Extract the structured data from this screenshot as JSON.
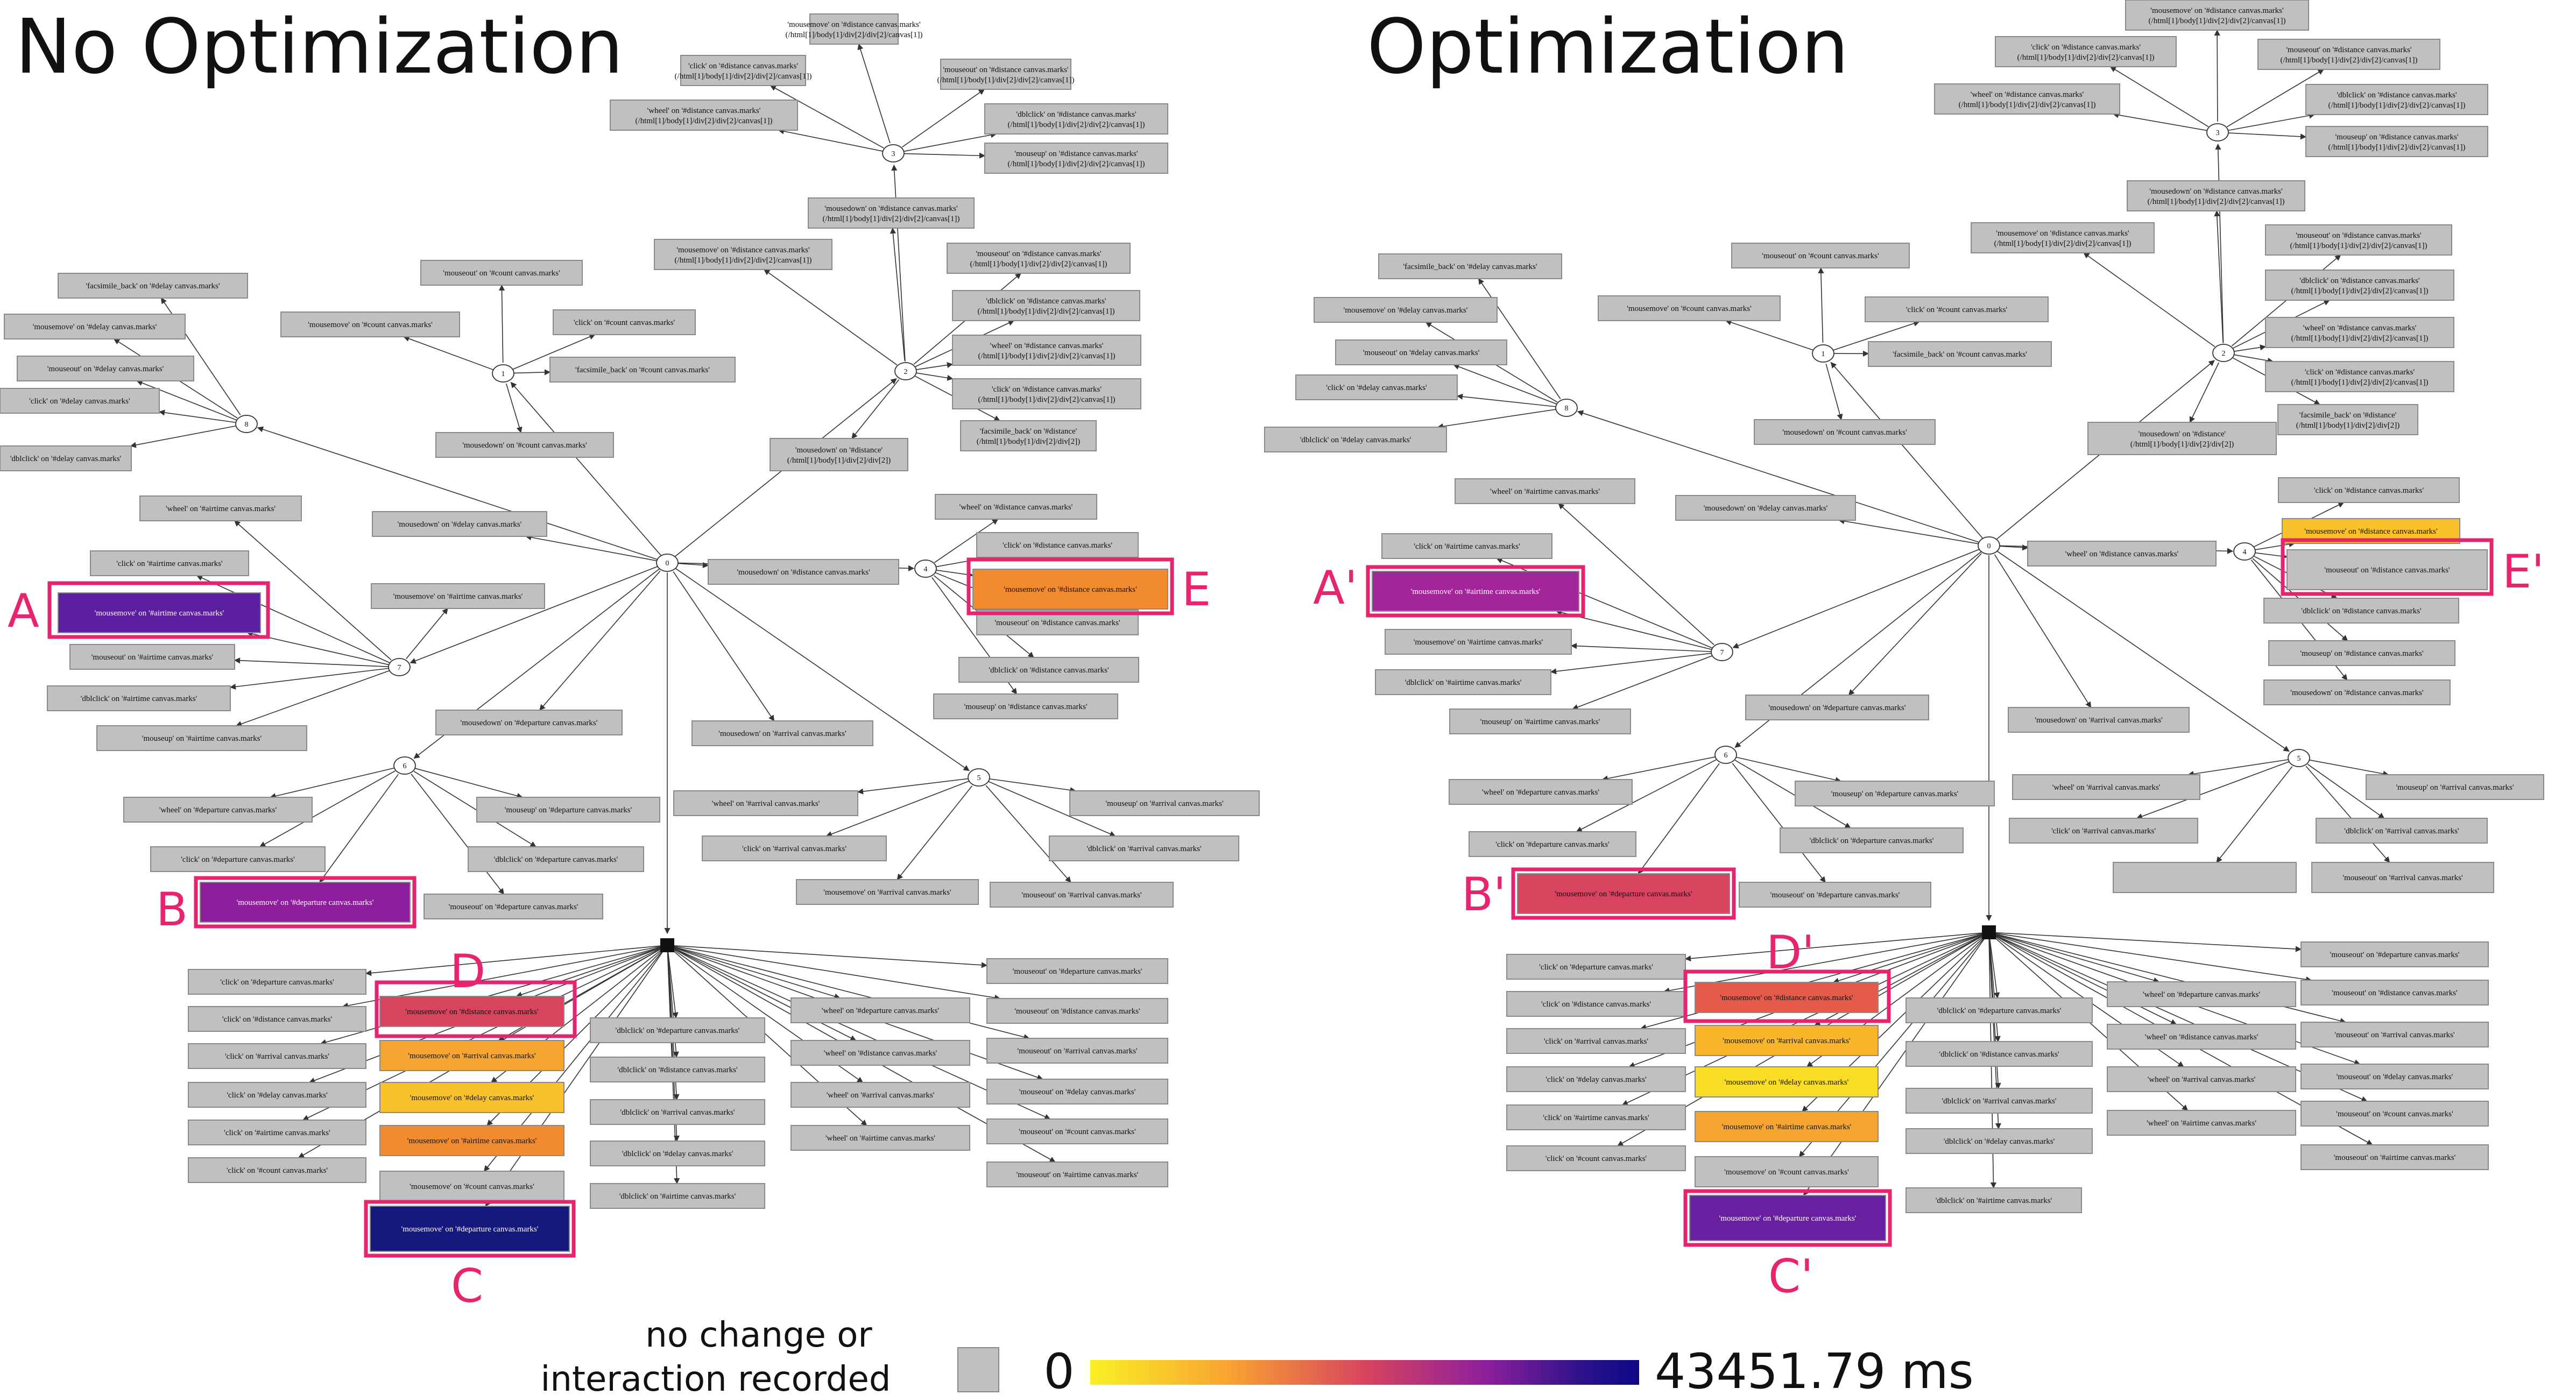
{
  "left": {
    "title": "No Optimization",
    "nodes": [
      {
        "id": "L3",
        "label": "3"
      },
      {
        "id": "L2",
        "label": "2"
      },
      {
        "id": "L1",
        "label": "1"
      },
      {
        "id": "L8",
        "label": "8"
      },
      {
        "id": "L0",
        "label": "0"
      },
      {
        "id": "L4",
        "label": "4"
      },
      {
        "id": "L7",
        "label": "7"
      },
      {
        "id": "L6",
        "label": "6"
      },
      {
        "id": "L5",
        "label": "5"
      }
    ],
    "boxes": [
      {
        "label": "'mousemove' on '#distance canvas.marks' (/html[1]/body[1]/div[2]/div[2]/canvas[1])",
        "color": "#c0c0c0"
      },
      {
        "label": "'click' on '#distance canvas.marks' (/html[1]/body[1]/div[2]/div[2]/canvas[1])",
        "color": "#c0c0c0"
      },
      {
        "label": "'mouseout' on '#distance canvas.marks' (/html[1]/body[1]/div[2]/div[2]/canvas[1])",
        "color": "#c0c0c0"
      },
      {
        "label": "'wheel' on '#distance canvas.marks' (/html[1]/body[1]/div[2]/div[2]/canvas[1])",
        "color": "#c0c0c0"
      },
      {
        "label": "'dblclick' on '#distance canvas.marks' (/html[1]/body[1]/div[2]/div[2]/canvas[1])",
        "color": "#c0c0c0"
      },
      {
        "label": "'mouseup' on '#distance canvas.marks' (/html[1]/body[1]/div[2]/div[2]/canvas[1])",
        "color": "#c0c0c0"
      },
      {
        "label": "'mousedown' on '#distance canvas.marks' (/html[1]/body[1]/div[2]/div[2]/canvas[1])",
        "color": "#c0c0c0"
      },
      {
        "label": "'mousemove' on '#distance canvas.marks' (/html[1]/body[1]/div[2]/div[2]/canvas[1])",
        "color": "#c0c0c0"
      },
      {
        "label": "'mouseout' on '#distance canvas.marks' (/html[1]/body[1]/div[2]/div[2]/canvas[1])",
        "color": "#c0c0c0"
      },
      {
        "label": "'dblclick' on '#distance canvas.marks' (/html[1]/body[1]/div[2]/div[2]/canvas[1])",
        "color": "#c0c0c0"
      },
      {
        "label": "'wheel' on '#distance canvas.marks' (/html[1]/body[1]/div[2]/div[2]/canvas[1])",
        "color": "#c0c0c0"
      },
      {
        "label": "'click' on '#distance canvas.marks' (/html[1]/body[1]/div[2]/div[2]/canvas[1])",
        "color": "#c0c0c0"
      },
      {
        "label": "'facsimile_back' on '#distance' (/html[1]/body[1]/div[2]/div[2])",
        "color": "#c0c0c0"
      },
      {
        "label": "'mousedown' on '#distance' (/html[1]/body[1]/div[2]/div[2])",
        "color": "#c0c0c0"
      },
      {
        "label": "'facsimile_back' on '#delay canvas.marks'",
        "color": "#c0c0c0"
      },
      {
        "label": "'mousemove' on '#delay canvas.marks'",
        "color": "#c0c0c0"
      },
      {
        "label": "'mouseout' on '#delay canvas.marks'",
        "color": "#c0c0c0"
      },
      {
        "label": "'click' on '#delay canvas.marks'",
        "color": "#c0c0c0"
      },
      {
        "label": "'dblclick' on '#delay canvas.marks'",
        "color": "#c0c0c0"
      },
      {
        "label": "'mouseout' on '#count canvas.marks'",
        "color": "#c0c0c0"
      },
      {
        "label": "'mousemove' on '#count canvas.marks'",
        "color": "#c0c0c0"
      },
      {
        "label": "'click' on '#count canvas.marks'",
        "color": "#c0c0c0"
      },
      {
        "label": "'facsimile_back' on '#count canvas.marks'",
        "color": "#c0c0c0"
      },
      {
        "label": "'mousedown' on '#count canvas.marks'",
        "color": "#c0c0c0"
      },
      {
        "label": "'mousedown' on '#delay canvas.marks'",
        "color": "#c0c0c0"
      },
      {
        "label": "'wheel' on '#airtime canvas.marks'",
        "color": "#c0c0c0"
      },
      {
        "label": "'click' on '#airtime canvas.marks'",
        "color": "#c0c0c0"
      },
      {
        "label": "'mousemove' on '#airtime canvas.marks'",
        "color": "#5a1e9e"
      },
      {
        "label": "'mousemove' on '#airtime canvas.marks'",
        "color": "#c0c0c0"
      },
      {
        "label": "'mouseout' on '#airtime canvas.marks'",
        "color": "#c0c0c0"
      },
      {
        "label": "'dblclick' on '#airtime canvas.marks'",
        "color": "#c0c0c0"
      },
      {
        "label": "'mouseup' on '#airtime canvas.marks'",
        "color": "#c0c0c0"
      },
      {
        "label": "'mousedown' on '#distance canvas.marks'",
        "color": "#c0c0c0"
      },
      {
        "label": "'wheel' on '#distance canvas.marks'",
        "color": "#c0c0c0"
      },
      {
        "label": "'click' on '#distance canvas.marks'",
        "color": "#c0c0c0"
      },
      {
        "label": "'mousemove' on '#distance canvas.marks'",
        "color": "#f28a2e"
      },
      {
        "label": "'mouseout' on '#distance canvas.marks'",
        "color": "#c0c0c0"
      },
      {
        "label": "'dblclick' on '#distance canvas.marks'",
        "color": "#c0c0c0"
      },
      {
        "label": "'mouseup' on '#distance canvas.marks'",
        "color": "#c0c0c0"
      },
      {
        "label": "'mousedown' on '#departure canvas.marks'",
        "color": "#c0c0c0"
      },
      {
        "label": "'mousedown' on '#arrival canvas.marks'",
        "color": "#c0c0c0"
      },
      {
        "label": "'wheel' on '#departure canvas.marks'",
        "color": "#c0c0c0"
      },
      {
        "label": "'mouseup' on '#departure canvas.marks'",
        "color": "#c0c0c0"
      },
      {
        "label": "'click' on '#departure canvas.marks'",
        "color": "#c0c0c0"
      },
      {
        "label": "'dblclick' on '#departure canvas.marks'",
        "color": "#c0c0c0"
      },
      {
        "label": "'mousemove' on '#departure canvas.marks'",
        "color": "#8e1f9c"
      },
      {
        "label": "'mouseout' on '#departure canvas.marks'",
        "color": "#c0c0c0"
      },
      {
        "label": "'wheel' on '#arrival canvas.marks'",
        "color": "#c0c0c0"
      },
      {
        "label": "'mouseup' on '#arrival canvas.marks'",
        "color": "#c0c0c0"
      },
      {
        "label": "'click' on '#arrival canvas.marks'",
        "color": "#c0c0c0"
      },
      {
        "label": "'dblclick' on '#arrival canvas.marks'",
        "color": "#c0c0c0"
      },
      {
        "label": "'mousemove' on '#arrival canvas.marks'",
        "color": "#c0c0c0"
      },
      {
        "label": "'mouseout' on '#arrival canvas.marks'",
        "color": "#c0c0c0"
      },
      {
        "label": "'click' on '#departure canvas.marks'",
        "color": "#c0c0c0"
      },
      {
        "label": "'click' on '#distance canvas.marks'",
        "color": "#c0c0c0"
      },
      {
        "label": "'click' on '#arrival canvas.marks'",
        "color": "#c0c0c0"
      },
      {
        "label": "'click' on '#delay canvas.marks'",
        "color": "#c0c0c0"
      },
      {
        "label": "'click' on '#airtime canvas.marks'",
        "color": "#c0c0c0"
      },
      {
        "label": "'click' on '#count canvas.marks'",
        "color": "#c0c0c0"
      },
      {
        "label": "'mousemove' on '#distance canvas.marks'",
        "color": "#d8445e"
      },
      {
        "label": "'mousemove' on '#arrival canvas.marks'",
        "color": "#f7a531"
      },
      {
        "label": "'mousemove' on '#delay canvas.marks'",
        "color": "#f9c22a"
      },
      {
        "label": "'mousemove' on '#airtime canvas.marks'",
        "color": "#f28a2e"
      },
      {
        "label": "'mousemove' on '#count canvas.marks'",
        "color": "#c0c0c0"
      },
      {
        "label": "'mousemove' on '#departure canvas.marks'",
        "color": "#15197e"
      },
      {
        "label": "'dblclick' on '#departure canvas.marks'",
        "color": "#c0c0c0"
      },
      {
        "label": "'dblclick' on '#distance canvas.marks'",
        "color": "#c0c0c0"
      },
      {
        "label": "'dblclick' on '#arrival canvas.marks'",
        "color": "#c0c0c0"
      },
      {
        "label": "'dblclick' on '#delay canvas.marks'",
        "color": "#c0c0c0"
      },
      {
        "label": "'dblclick' on '#airtime canvas.marks'",
        "color": "#c0c0c0"
      },
      {
        "label": "'wheel' on '#departure canvas.marks'",
        "color": "#c0c0c0"
      },
      {
        "label": "'wheel' on '#distance canvas.marks'",
        "color": "#c0c0c0"
      },
      {
        "label": "'wheel' on '#arrival canvas.marks'",
        "color": "#c0c0c0"
      },
      {
        "label": "'wheel' on '#airtime canvas.marks'",
        "color": "#c0c0c0"
      },
      {
        "label": "'mouseout' on '#departure canvas.marks'",
        "color": "#c0c0c0"
      },
      {
        "label": "'mouseout' on '#distance canvas.marks'",
        "color": "#c0c0c0"
      },
      {
        "label": "'mouseout' on '#arrival canvas.marks'",
        "color": "#c0c0c0"
      },
      {
        "label": "'mouseout' on '#delay canvas.marks'",
        "color": "#c0c0c0"
      },
      {
        "label": "'mouseout' on '#count canvas.marks'",
        "color": "#c0c0c0"
      },
      {
        "label": "'mouseout' on '#airtime canvas.marks'",
        "color": "#c0c0c0"
      }
    ],
    "callouts": [
      "A",
      "B",
      "C",
      "D",
      "E"
    ]
  },
  "right": {
    "title": "Optimization",
    "nodes": [
      {
        "id": "R3",
        "label": "3"
      },
      {
        "id": "R2",
        "label": "2"
      },
      {
        "id": "R1",
        "label": "1"
      },
      {
        "id": "R8",
        "label": "8"
      },
      {
        "id": "R0",
        "label": "0"
      },
      {
        "id": "R4",
        "label": "4"
      },
      {
        "id": "R7",
        "label": "7"
      },
      {
        "id": "R6",
        "label": "6"
      },
      {
        "id": "R5",
        "label": "5"
      }
    ],
    "boxes": [
      {
        "label": "'mousemove' on '#distance canvas.marks' (/html[1]/body[1]/div[2]/div[2]/canvas[1])",
        "color": "#c0c0c0"
      },
      {
        "label": "'click' on '#distance canvas.marks' (/html[1]/body[1]/div[2]/div[2]/canvas[1])",
        "color": "#c0c0c0"
      },
      {
        "label": "'mouseout' on '#distance canvas.marks' (/html[1]/body[1]/div[2]/div[2]/canvas[1])",
        "color": "#c0c0c0"
      },
      {
        "label": "'wheel' on '#distance canvas.marks' (/html[1]/body[1]/div[2]/div[2]/canvas[1])",
        "color": "#c0c0c0"
      },
      {
        "label": "'dblclick' on '#distance canvas.marks' (/html[1]/body[1]/div[2]/div[2]/canvas[1])",
        "color": "#c0c0c0"
      },
      {
        "label": "'mouseup' on '#distance canvas.marks' (/html[1]/body[1]/div[2]/div[2]/canvas[1])",
        "color": "#c0c0c0"
      },
      {
        "label": "'mousedown' on '#distance canvas.marks' (/html[1]/body[1]/div[2]/div[2]/canvas[1])",
        "color": "#c0c0c0"
      },
      {
        "label": "'mousemove' on '#distance canvas.marks' (/html[1]/body[1]/div[2]/div[2]/canvas[1])",
        "color": "#c0c0c0"
      },
      {
        "label": "'mouseout' on '#distance canvas.marks' (/html[1]/body[1]/div[2]/div[2]/canvas[1])",
        "color": "#c0c0c0"
      },
      {
        "label": "'dblclick' on '#distance canvas.marks' (/html[1]/body[1]/div[2]/div[2]/canvas[1])",
        "color": "#c0c0c0"
      },
      {
        "label": "'wheel' on '#distance canvas.marks' (/html[1]/body[1]/div[2]/div[2]/canvas[1])",
        "color": "#c0c0c0"
      },
      {
        "label": "'click' on '#distance canvas.marks' (/html[1]/body[1]/div[2]/div[2]/canvas[1])",
        "color": "#c0c0c0"
      },
      {
        "label": "'facsimile_back' on '#distance' (/html[1]/body[1]/div[2]/div[2])",
        "color": "#c0c0c0"
      },
      {
        "label": "'mousedown' on '#distance' (/html[1]/body[1]/div[2]/div[2])",
        "color": "#c0c0c0"
      },
      {
        "label": "'facsimile_back' on '#delay canvas.marks'",
        "color": "#c0c0c0"
      },
      {
        "label": "'mousemove' on '#delay canvas.marks'",
        "color": "#c0c0c0"
      },
      {
        "label": "'mouseout' on '#delay canvas.marks'",
        "color": "#c0c0c0"
      },
      {
        "label": "'click' on '#delay canvas.marks'",
        "color": "#c0c0c0"
      },
      {
        "label": "'dblclick' on '#delay canvas.marks'",
        "color": "#c0c0c0"
      },
      {
        "label": "'mouseout' on '#count canvas.marks'",
        "color": "#c0c0c0"
      },
      {
        "label": "'mousemove' on '#count canvas.marks'",
        "color": "#c0c0c0"
      },
      {
        "label": "'click' on '#count canvas.marks'",
        "color": "#c0c0c0"
      },
      {
        "label": "'facsimile_back' on '#count canvas.marks'",
        "color": "#c0c0c0"
      },
      {
        "label": "'mousedown' on '#count canvas.marks'",
        "color": "#c0c0c0"
      },
      {
        "label": "'mousedown' on '#delay canvas.marks'",
        "color": "#c0c0c0"
      },
      {
        "label": "'wheel' on '#airtime canvas.marks'",
        "color": "#c0c0c0"
      },
      {
        "label": "'click' on '#airtime canvas.marks'",
        "color": "#c0c0c0"
      },
      {
        "label": "'mousemove' on '#airtime canvas.marks'",
        "color": "#a2259a"
      },
      {
        "label": "'mousemove' on '#airtime canvas.marks'",
        "color": "#c0c0c0"
      },
      {
        "label": "'dblclick' on '#airtime canvas.marks'",
        "color": "#c0c0c0"
      },
      {
        "label": "'mouseup' on '#airtime canvas.marks'",
        "color": "#c0c0c0"
      },
      {
        "label": "'wheel' on '#distance canvas.marks'",
        "color": "#c0c0c0"
      },
      {
        "label": "'click' on '#distance canvas.marks'",
        "color": "#c0c0c0"
      },
      {
        "label": "'mousemove' on '#distance canvas.marks'",
        "color": "#f9c22a"
      },
      {
        "label": "'mouseout' on '#distance canvas.marks'",
        "color": "#c0c0c0"
      },
      {
        "label": "'dblclick' on '#distance canvas.marks'",
        "color": "#c0c0c0"
      },
      {
        "label": "'mouseup' on '#distance canvas.marks'",
        "color": "#c0c0c0"
      },
      {
        "label": "'mousedown' on '#distance canvas.marks'",
        "color": "#c0c0c0"
      },
      {
        "label": "'mousedown' on '#departure canvas.marks'",
        "color": "#c0c0c0"
      },
      {
        "label": "'mousedown' on '#arrival canvas.marks'",
        "color": "#c0c0c0"
      },
      {
        "label": "'wheel' on '#departure canvas.marks'",
        "color": "#c0c0c0"
      },
      {
        "label": "'mouseup' on '#departure canvas.marks'",
        "color": "#c0c0c0"
      },
      {
        "label": "'click' on '#departure canvas.marks'",
        "color": "#c0c0c0"
      },
      {
        "label": "'dblclick' on '#departure canvas.marks'",
        "color": "#c0c0c0"
      },
      {
        "label": "'mousemove' on '#departure canvas.marks'",
        "color": "#d8445e"
      },
      {
        "label": "'mouseout' on '#departure canvas.marks'",
        "color": "#c0c0c0"
      },
      {
        "label": "'wheel' on '#arrival canvas.marks'",
        "color": "#c0c0c0"
      },
      {
        "label": "'mouseup' on '#arrival canvas.marks'",
        "color": "#c0c0c0"
      },
      {
        "label": "'click' on '#arrival canvas.marks'",
        "color": "#c0c0c0"
      },
      {
        "label": "'dblclick' on '#arrival canvas.marks'",
        "color": "#c0c0c0"
      },
      {
        "label": "",
        "color": "#c0c0c0"
      },
      {
        "label": "'mouseout' on '#arrival canvas.marks'",
        "color": "#c0c0c0"
      },
      {
        "label": "'click' on '#departure canvas.marks'",
        "color": "#c0c0c0"
      },
      {
        "label": "'click' on '#distance canvas.marks'",
        "color": "#c0c0c0"
      },
      {
        "label": "'click' on '#arrival canvas.marks'",
        "color": "#c0c0c0"
      },
      {
        "label": "'click' on '#delay canvas.marks'",
        "color": "#c0c0c0"
      },
      {
        "label": "'click' on '#airtime canvas.marks'",
        "color": "#c0c0c0"
      },
      {
        "label": "'click' on '#count canvas.marks'",
        "color": "#c0c0c0"
      },
      {
        "label": "'mousemove' on '#distance canvas.marks'",
        "color": "#e55a48"
      },
      {
        "label": "'mousemove' on '#arrival canvas.marks'",
        "color": "#f9b62b"
      },
      {
        "label": "'mousemove' on '#delay canvas.marks'",
        "color": "#f9dc24"
      },
      {
        "label": "'mousemove' on '#airtime canvas.marks'",
        "color": "#f7a531"
      },
      {
        "label": "'mousemove' on '#count canvas.marks'",
        "color": "#c0c0c0"
      },
      {
        "label": "'mousemove' on '#departure canvas.marks'",
        "color": "#6a1fa3"
      },
      {
        "label": "'dblclick' on '#departure canvas.marks'",
        "color": "#c0c0c0"
      },
      {
        "label": "'dblclick' on '#distance canvas.marks'",
        "color": "#c0c0c0"
      },
      {
        "label": "'dblclick' on '#arrival canvas.marks'",
        "color": "#c0c0c0"
      },
      {
        "label": "'dblclick' on '#delay canvas.marks'",
        "color": "#c0c0c0"
      },
      {
        "label": "'dblclick' on '#airtime canvas.marks'",
        "color": "#c0c0c0"
      },
      {
        "label": "'wheel' on '#departure canvas.marks'",
        "color": "#c0c0c0"
      },
      {
        "label": "'wheel' on '#distance canvas.marks'",
        "color": "#c0c0c0"
      },
      {
        "label": "'wheel' on '#arrival canvas.marks'",
        "color": "#c0c0c0"
      },
      {
        "label": "'wheel' on '#airtime canvas.marks'",
        "color": "#c0c0c0"
      },
      {
        "label": "'mouseout' on '#departure canvas.marks'",
        "color": "#c0c0c0"
      },
      {
        "label": "'mouseout' on '#distance canvas.marks'",
        "color": "#c0c0c0"
      },
      {
        "label": "'mouseout' on '#arrival canvas.marks'",
        "color": "#c0c0c0"
      },
      {
        "label": "'mouseout' on '#delay canvas.marks'",
        "color": "#c0c0c0"
      },
      {
        "label": "'mouseout' on '#count canvas.marks'",
        "color": "#c0c0c0"
      },
      {
        "label": "'mouseout' on '#airtime canvas.marks'",
        "color": "#c0c0c0"
      }
    ],
    "callouts": [
      "A'",
      "B'",
      "C'",
      "D'",
      "E'"
    ]
  },
  "legend": {
    "gray_label_line1": "no change or",
    "gray_label_line2": "interaction recorded",
    "gray_color": "#c0c0c0",
    "scale_min": "0",
    "scale_max": "43451.79 ms",
    "gradient_colors": [
      "#f9f024",
      "#f9a431",
      "#d8445e",
      "#8e1f9c",
      "#2a128a",
      "#0d0887"
    ]
  },
  "accent_color": "#e8246e"
}
